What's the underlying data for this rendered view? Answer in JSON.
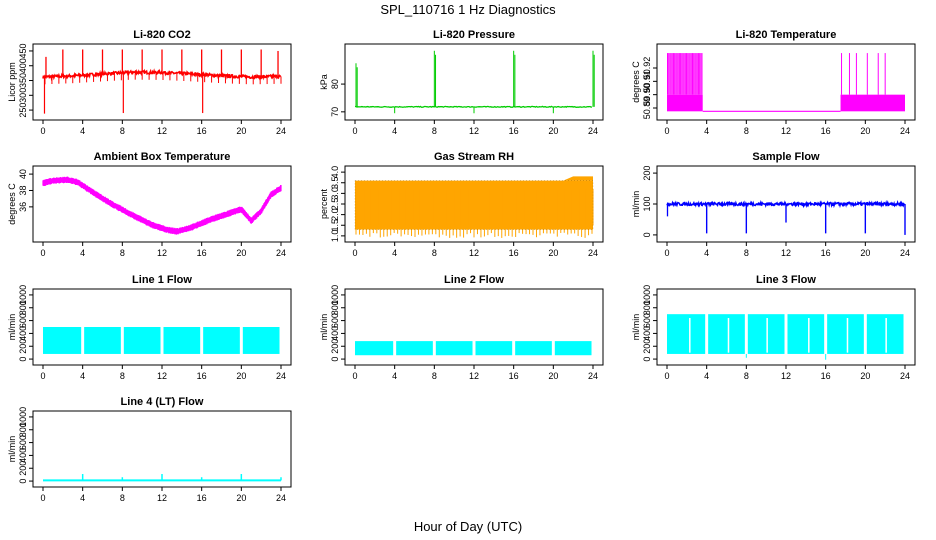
{
  "main_title": "SPL_110716  1 Hz Diagnostics",
  "xlabel": "Hour of Day (UTC)",
  "chart_data": [
    {
      "id": "co2",
      "type": "line",
      "title": "Li-820 CO2",
      "ylabel": "Licor ppm",
      "color": "#ff0000",
      "xlim": [
        0,
        24
      ],
      "ylim": [
        230,
        460
      ],
      "yticks": [
        250,
        300,
        350,
        400,
        450
      ],
      "ytick_labels": [
        "250",
        "300",
        "350",
        "400",
        "450"
      ],
      "xticks": [
        0,
        4,
        8,
        12,
        16,
        20,
        24
      ],
      "xtick_labels": [
        "0",
        "4",
        "8",
        "12",
        "16",
        "20",
        "24"
      ],
      "baseline": [
        [
          0,
          362
        ],
        [
          3,
          366
        ],
        [
          6,
          372
        ],
        [
          9,
          378
        ],
        [
          12,
          377
        ],
        [
          15,
          372
        ],
        [
          18,
          366
        ],
        [
          21,
          362
        ],
        [
          24,
          364
        ]
      ],
      "spikes_up": [
        [
          0.3,
          430
        ],
        [
          2,
          455
        ],
        [
          4,
          455
        ],
        [
          6,
          455
        ],
        [
          8,
          455
        ],
        [
          10,
          455
        ],
        [
          12,
          455
        ],
        [
          14,
          455
        ],
        [
          16,
          455
        ],
        [
          18,
          455
        ],
        [
          20,
          455
        ],
        [
          22,
          455
        ],
        [
          23.7,
          450
        ]
      ],
      "spikes_down": [
        [
          0.15,
          238
        ],
        [
          8.1,
          240
        ],
        [
          16.1,
          240
        ]
      ]
    },
    {
      "id": "pressure",
      "type": "line",
      "title": "Li-820 Pressure",
      "ylabel": "kPa",
      "color": "#00cc00",
      "xlim": [
        0,
        24
      ],
      "ylim": [
        68.5,
        93
      ],
      "yticks": [
        70,
        80
      ],
      "ytick_labels": [
        "70",
        "80"
      ],
      "xticks": [
        0,
        4,
        8,
        12,
        16,
        20,
        24
      ],
      "xtick_labels": [
        "0",
        "4",
        "8",
        "12",
        "16",
        "20",
        "24"
      ],
      "baseline": [
        [
          0,
          71.8
        ],
        [
          24,
          71.8
        ]
      ],
      "spikes_up": [
        [
          0.1,
          87.5
        ],
        [
          8,
          92
        ],
        [
          16,
          92
        ],
        [
          24,
          92
        ]
      ],
      "spikes_down": [
        [
          4,
          69.5
        ],
        [
          12,
          69.5
        ],
        [
          20,
          69.5
        ]
      ]
    },
    {
      "id": "licor_temp",
      "type": "line",
      "title": "Li-820 Temperature",
      "ylabel": "degrees C",
      "color": "#ff00ff",
      "xlim": [
        0,
        24
      ],
      "ylim": [
        50.884,
        50.935
      ],
      "yticks": [
        50.89,
        50.9,
        50.91,
        50.92
      ],
      "ytick_labels": [
        "50.89",
        "50.90",
        "50.91",
        "50.92"
      ],
      "xticks": [
        0,
        4,
        8,
        12,
        16,
        20,
        24
      ],
      "xtick_labels": [
        "0",
        "4",
        "8",
        "12",
        "16",
        "20",
        "24"
      ],
      "band_low": 50.8875,
      "band_high": 50.9,
      "band_segments": [
        [
          0,
          3.6
        ],
        [
          17.5,
          24
        ]
      ],
      "peak": 50.9312
    },
    {
      "id": "box_temp",
      "type": "line",
      "title": "Ambient Box Temperature",
      "ylabel": "degrees C",
      "color": "#ff00ff",
      "xlim": [
        0,
        24
      ],
      "ylim": [
        32.2,
        40.5
      ],
      "yticks": [
        36,
        38,
        40
      ],
      "ytick_labels": [
        "36",
        "38",
        "40"
      ],
      "xticks": [
        0,
        4,
        8,
        12,
        16,
        20,
        24
      ],
      "xtick_labels": [
        "0",
        "4",
        "8",
        "12",
        "16",
        "20",
        "24"
      ],
      "curve": [
        [
          0,
          38.9
        ],
        [
          1,
          39.2
        ],
        [
          2.5,
          39.3
        ],
        [
          3.5,
          39.0
        ],
        [
          5,
          37.8
        ],
        [
          7,
          36.3
        ],
        [
          9,
          35.0
        ],
        [
          11,
          33.8
        ],
        [
          12.5,
          33.2
        ],
        [
          13.5,
          33.0
        ],
        [
          15,
          33.5
        ],
        [
          17,
          34.5
        ],
        [
          19,
          35.3
        ],
        [
          20,
          35.7
        ],
        [
          21,
          34.3
        ],
        [
          22,
          35.5
        ],
        [
          23,
          37.5
        ],
        [
          24,
          38.3
        ]
      ]
    },
    {
      "id": "rh",
      "type": "line",
      "title": "Gas Stream RH",
      "ylabel": "percent",
      "color": "#ffa500",
      "xlim": [
        0,
        24
      ],
      "ylim": [
        0.9,
        4.1
      ],
      "yticks": [
        1,
        1.5,
        2,
        2.5,
        3,
        3.5,
        4
      ],
      "ytick_labels": [
        "1.0",
        "1.5",
        "2.0",
        "2.5",
        "3.0",
        "3.5",
        "4.0"
      ],
      "xticks": [
        0,
        4,
        8,
        12,
        16,
        20,
        24
      ],
      "xtick_labels": [
        "0",
        "4",
        "8",
        "12",
        "16",
        "20",
        "24"
      ],
      "band_low": 1.3,
      "band_high": 3.6,
      "band_high_end": 3.8
    },
    {
      "id": "sample_flow",
      "type": "line",
      "title": "Sample Flow",
      "ylabel": "ml/min",
      "color": "#0000ff",
      "xlim": [
        0,
        24
      ],
      "ylim": [
        -10,
        210
      ],
      "yticks": [
        0,
        100,
        200
      ],
      "ytick_labels": [
        "0",
        "100",
        "200"
      ],
      "xticks": [
        0,
        4,
        8,
        12,
        16,
        20,
        24
      ],
      "xtick_labels": [
        "0",
        "4",
        "8",
        "12",
        "16",
        "20",
        "24"
      ],
      "baseline_value": 100,
      "dips": [
        [
          4,
          5
        ],
        [
          8,
          5
        ],
        [
          12,
          40
        ],
        [
          16,
          5
        ],
        [
          20,
          5
        ],
        [
          24,
          0
        ]
      ]
    },
    {
      "id": "line1",
      "type": "line",
      "title": "Line 1 Flow",
      "ylabel": "ml/min",
      "color": "#00ffff",
      "xlim": [
        0,
        24
      ],
      "ylim": [
        -30,
        1030
      ],
      "yticks": [
        0,
        200,
        400,
        600,
        800,
        1000
      ],
      "ytick_labels": [
        "0",
        "200",
        "400",
        "600",
        "800",
        "1000"
      ],
      "xticks": [
        0,
        4,
        8,
        12,
        16,
        20,
        24
      ],
      "xtick_labels": [
        "0",
        "4",
        "8",
        "12",
        "16",
        "20",
        "24"
      ],
      "band_low": 80,
      "band_high": 500,
      "gaps": [
        4,
        8,
        12,
        16,
        20
      ]
    },
    {
      "id": "line2",
      "type": "line",
      "title": "Line 2 Flow",
      "ylabel": "ml/min",
      "color": "#00ffff",
      "xlim": [
        0,
        24
      ],
      "ylim": [
        -30,
        1030
      ],
      "yticks": [
        0,
        200,
        400,
        600,
        800,
        1000
      ],
      "ytick_labels": [
        "0",
        "200",
        "400",
        "600",
        "800",
        "1000"
      ],
      "xticks": [
        0,
        4,
        8,
        12,
        16,
        20,
        24
      ],
      "xtick_labels": [
        "0",
        "4",
        "8",
        "12",
        "16",
        "20",
        "24"
      ],
      "band_low": 60,
      "band_high": 280,
      "gaps": [
        4,
        8,
        12,
        16,
        20
      ]
    },
    {
      "id": "line3",
      "type": "line",
      "title": "Line 3 Flow",
      "ylabel": "ml/min",
      "color": "#00ffff",
      "xlim": [
        0,
        24
      ],
      "ylim": [
        -30,
        1030
      ],
      "yticks": [
        0,
        200,
        400,
        600,
        800,
        1000
      ],
      "ytick_labels": [
        "0",
        "200",
        "400",
        "600",
        "800",
        "1000"
      ],
      "xticks": [
        0,
        4,
        8,
        12,
        16,
        20,
        24
      ],
      "xtick_labels": [
        "0",
        "4",
        "8",
        "12",
        "16",
        "20",
        "24"
      ],
      "band_low": 80,
      "band_high": 700,
      "gaps": [
        4,
        8,
        12,
        16,
        20
      ]
    },
    {
      "id": "line4",
      "type": "line",
      "title": "Line 4 (LT) Flow",
      "ylabel": "ml/min",
      "color": "#00ffff",
      "xlim": [
        0,
        24
      ],
      "ylim": [
        -30,
        1030
      ],
      "yticks": [
        0,
        200,
        400,
        600,
        800,
        1000
      ],
      "ytick_labels": [
        "0",
        "200",
        "400",
        "600",
        "800",
        "1000"
      ],
      "xticks": [
        0,
        4,
        8,
        12,
        16,
        20,
        24
      ],
      "xtick_labels": [
        "0",
        "4",
        "8",
        "12",
        "16",
        "20",
        "24"
      ],
      "baseline_value": 10,
      "spikes_up": [
        [
          4,
          110
        ],
        [
          8,
          60
        ],
        [
          12,
          110
        ],
        [
          16,
          60
        ],
        [
          20,
          110
        ],
        [
          24,
          60
        ]
      ]
    }
  ]
}
